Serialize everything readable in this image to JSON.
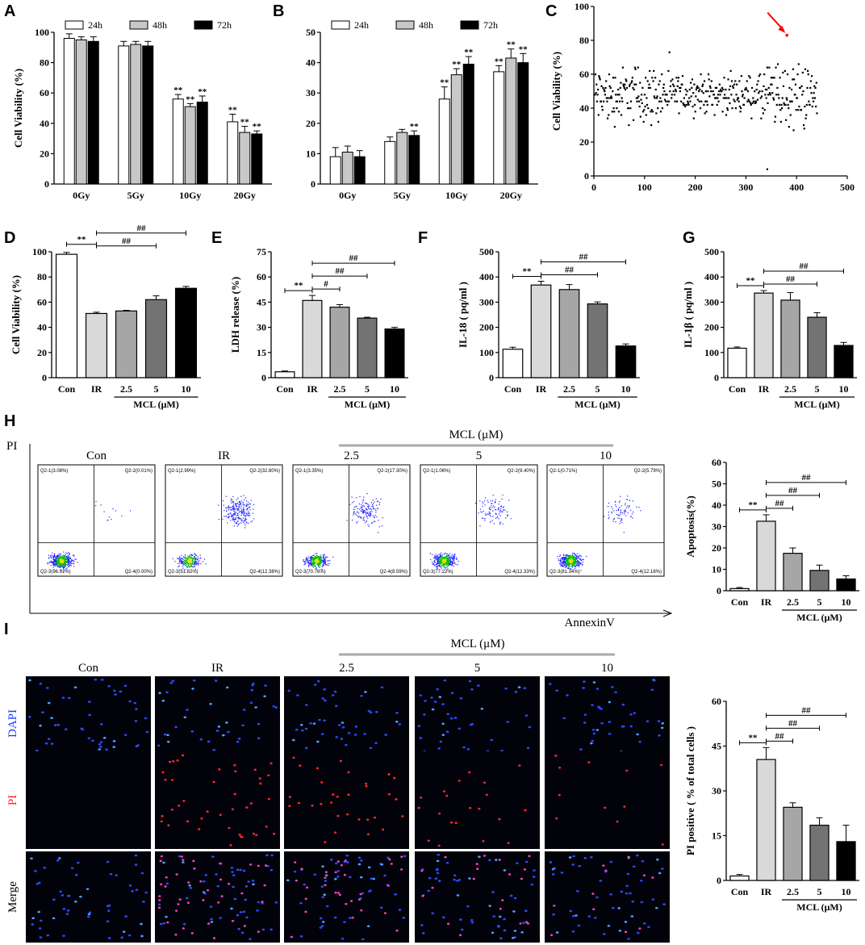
{
  "chart_data": [
    {
      "panel": "A",
      "type": "bar",
      "categories": [
        "0Gy",
        "5Gy",
        "10Gy",
        "20Gy"
      ],
      "series": [
        {
          "name": "24h",
          "values": [
            96,
            91,
            56,
            41
          ],
          "errors": [
            3,
            3,
            3,
            5
          ],
          "sig": [
            "",
            "",
            "**",
            "**"
          ]
        },
        {
          "name": "48h",
          "values": [
            95,
            92,
            51,
            34
          ],
          "errors": [
            2,
            2,
            2,
            4
          ],
          "sig": [
            "",
            "",
            "**",
            "**"
          ]
        },
        {
          "name": "72h",
          "values": [
            94,
            91,
            54,
            33
          ],
          "errors": [
            3,
            3,
            4,
            2
          ],
          "sig": [
            "",
            "",
            "**",
            "**"
          ]
        }
      ],
      "ylabel": "Cell Viability (%)",
      "ylim": [
        0,
        100
      ],
      "yticks": [
        0,
        20,
        40,
        60,
        80,
        100
      ]
    },
    {
      "panel": "B",
      "type": "bar",
      "categories": [
        "0Gy",
        "5Gy",
        "10Gy",
        "20Gy"
      ],
      "series": [
        {
          "name": "24h",
          "values": [
            9,
            14,
            28,
            37
          ],
          "errors": [
            3,
            1.5,
            4,
            2
          ],
          "sig": [
            "",
            "",
            "**",
            "**"
          ]
        },
        {
          "name": "48h",
          "values": [
            10.5,
            17,
            36,
            41.5
          ],
          "errors": [
            2,
            1,
            2,
            3
          ],
          "sig": [
            "",
            "",
            "**",
            "**"
          ]
        },
        {
          "name": "72h",
          "values": [
            9,
            16,
            39.5,
            40
          ],
          "errors": [
            2,
            1.5,
            2.5,
            3
          ],
          "sig": [
            "",
            "**",
            "**",
            "**"
          ]
        }
      ],
      "ylabel": "",
      "ylim": [
        0,
        50
      ],
      "yticks": [
        0,
        10,
        20,
        30,
        40,
        50
      ]
    },
    {
      "panel": "C",
      "type": "scatter",
      "ylabel": "Cell Viability (%)",
      "xlim": [
        0,
        500
      ],
      "ylim": [
        0,
        100
      ],
      "xticks": [
        0,
        100,
        200,
        300,
        400,
        500
      ],
      "yticks": [
        0,
        20,
        40,
        60,
        80,
        100
      ],
      "n_points": 440,
      "highlight": {
        "x": 381,
        "y": 83
      }
    },
    {
      "panel": "D",
      "type": "bar",
      "categories": [
        "Con",
        "IR",
        "2.5",
        "5",
        "10"
      ],
      "values": [
        98,
        51,
        53,
        62,
        71
      ],
      "errors": [
        1.5,
        1,
        0.5,
        3,
        1.5
      ],
      "ylabel": "Cell Viability (%)",
      "ylim": [
        0,
        100
      ],
      "yticks": [
        0,
        20,
        40,
        60,
        80,
        100
      ],
      "group_label": "MCL (μM)",
      "comparisons": [
        {
          "from": "Con",
          "to": "IR",
          "label": "**"
        },
        {
          "from": "IR",
          "to": "5",
          "label": "##"
        },
        {
          "from": "IR",
          "to": "10",
          "label": "##"
        }
      ]
    },
    {
      "panel": "E",
      "type": "bar",
      "categories": [
        "Con",
        "IR",
        "2.5",
        "5",
        "10"
      ],
      "values": [
        3.5,
        46,
        42,
        35.5,
        29
      ],
      "errors": [
        0.5,
        3,
        1.5,
        0.5,
        1
      ],
      "ylabel": "LDH release (%)",
      "ylim": [
        0,
        75
      ],
      "yticks": [
        0,
        15,
        30,
        45,
        60,
        75
      ],
      "group_label": "MCL (μM)",
      "comparisons": [
        {
          "from": "Con",
          "to": "IR",
          "label": "**"
        },
        {
          "from": "IR",
          "to": "2.5",
          "label": "#"
        },
        {
          "from": "IR",
          "to": "5",
          "label": "##"
        },
        {
          "from": "IR",
          "to": "10",
          "label": "##"
        }
      ]
    },
    {
      "panel": "F",
      "type": "bar",
      "categories": [
        "Con",
        "IR",
        "2.5",
        "5",
        "10"
      ],
      "values": [
        113,
        368,
        350,
        293,
        126
      ],
      "errors": [
        8,
        15,
        20,
        8,
        8
      ],
      "ylabel": "IL-18 ( pq/ml )",
      "ylim": [
        0,
        500
      ],
      "yticks": [
        0,
        100,
        200,
        300,
        400,
        500
      ],
      "group_label": "MCL (μM)",
      "comparisons": [
        {
          "from": "Con",
          "to": "IR",
          "label": "**"
        },
        {
          "from": "IR",
          "to": "5",
          "label": "##"
        },
        {
          "from": "IR",
          "to": "10",
          "label": "##"
        }
      ]
    },
    {
      "panel": "G",
      "type": "bar",
      "categories": [
        "Con",
        "IR",
        "2.5",
        "5",
        "10"
      ],
      "values": [
        117,
        336,
        308,
        240,
        128
      ],
      "errors": [
        5,
        10,
        30,
        18,
        12
      ],
      "ylabel": "IL-1β ( pq/ml )",
      "ylim": [
        0,
        500
      ],
      "yticks": [
        0,
        100,
        200,
        300,
        400,
        500
      ],
      "group_label": "MCL (μM)",
      "comparisons": [
        {
          "from": "Con",
          "to": "IR",
          "label": "**"
        },
        {
          "from": "IR",
          "to": "5",
          "label": "##"
        },
        {
          "from": "IR",
          "to": "10",
          "label": "##"
        }
      ]
    },
    {
      "panel": "H-bar",
      "type": "bar",
      "categories": [
        "Con",
        "IR",
        "2.5",
        "5",
        "10"
      ],
      "values": [
        1,
        32.5,
        17.5,
        9.5,
        5.5
      ],
      "errors": [
        0.5,
        3,
        2.5,
        2.5,
        1.5
      ],
      "ylabel": "Apoptosis(%)",
      "ylim": [
        0,
        60
      ],
      "yticks": [
        0,
        10,
        20,
        30,
        40,
        50,
        60
      ],
      "group_label": "MCL (μM)",
      "comparisons": [
        {
          "from": "Con",
          "to": "IR",
          "label": "**"
        },
        {
          "from": "IR",
          "to": "2.5",
          "label": "##"
        },
        {
          "from": "IR",
          "to": "5",
          "label": "##"
        },
        {
          "from": "IR",
          "to": "10",
          "label": "##"
        }
      ]
    },
    {
      "panel": "I-bar",
      "type": "bar",
      "categories": [
        "Con",
        "IR",
        "2.5",
        "5",
        "10"
      ],
      "values": [
        1.5,
        40.5,
        24.5,
        18.5,
        13
      ],
      "errors": [
        0.5,
        4,
        1.5,
        2.5,
        5.5
      ],
      "ylabel": "PI positive ( % of total cells )",
      "ylim": [
        0,
        60
      ],
      "yticks": [
        0,
        15,
        30,
        45,
        60
      ],
      "group_label": "MCL (μM)",
      "comparisons": [
        {
          "from": "Con",
          "to": "IR",
          "label": "**"
        },
        {
          "from": "IR",
          "to": "2.5",
          "label": "##"
        },
        {
          "from": "IR",
          "to": "5",
          "label": "##"
        },
        {
          "from": "IR",
          "to": "10",
          "label": "##"
        }
      ]
    }
  ],
  "panel_letters": [
    "A",
    "B",
    "C",
    "D",
    "E",
    "F",
    "G",
    "H",
    "I"
  ],
  "flow": {
    "group_header": "MCL (μM)",
    "yaxis_label": "PI",
    "xaxis_label": "AnnexinV",
    "conditions": [
      {
        "name": "Con",
        "q1": "Q2-1(3.08%)",
        "q2": "Q2-2(0.01%)",
        "q3": "Q2-3(96.91%)",
        "q4": "Q2-4(0.00%)"
      },
      {
        "name": "IR",
        "q1": "Q2-1(2.99%)",
        "q2": "Q2-2(32.80%)",
        "q3": "Q2-3(51.82%)",
        "q4": "Q2-4(12.38%)"
      },
      {
        "name": "2.5",
        "q1": "Q2-1(3.35%)",
        "q2": "Q2-2(17.30%)",
        "q3": "Q2-3(70.76%)",
        "q4": "Q2-4(8.59%)"
      },
      {
        "name": "5",
        "q1": "Q2-1(1.06%)",
        "q2": "Q2-2(9.40%)",
        "q3": "Q2-3(77.22%)",
        "q4": "Q2-4(12.33%)"
      },
      {
        "name": "10",
        "q1": "Q2-1(0.71%)",
        "q2": "Q2-2(5.79%)",
        "q3": "Q2-3(81.34%)",
        "q4": "Q2-4(12.16%)"
      }
    ]
  },
  "microscopy": {
    "group_header": "MCL (μM)",
    "conditions": [
      "Con",
      "IR",
      "2.5",
      "5",
      "10"
    ],
    "rows": [
      {
        "label": "DAPI",
        "color": "#1a3cff"
      },
      {
        "label": "PI",
        "color": "#ff2020"
      },
      {
        "label": "Merge",
        "color": "#000000"
      }
    ],
    "pi_density": [
      0,
      0.9,
      0.7,
      0.45,
      0.25
    ]
  },
  "colors": {
    "Con": "#ffffff",
    "IR": "#d9d9d9",
    "2.5": "#a6a6a6",
    "5": "#737373",
    "10": "#000000",
    "24h": "#ffffff",
    "48h": "#c8c8c8",
    "72h": "#000000",
    "highlight": "#ff0000"
  }
}
